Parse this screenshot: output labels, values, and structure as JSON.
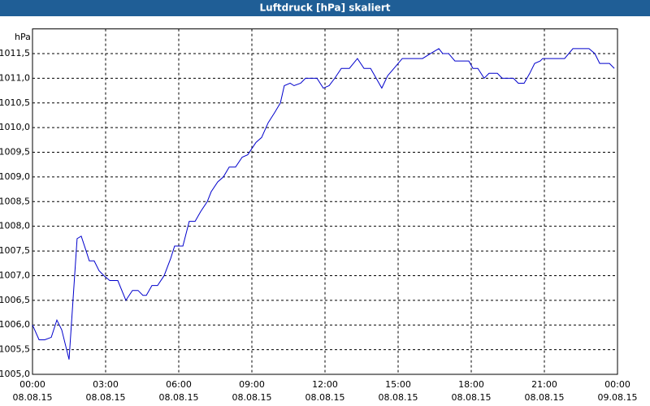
{
  "chart_data": {
    "type": "line",
    "title": "Luftdruck [hPa] skaliert",
    "y_unit": "hPa",
    "xlim": [
      0,
      24
    ],
    "ylim": [
      1005,
      1012
    ],
    "grid": true,
    "xticks": [
      {
        "value": 0,
        "label": "00:00\n08.08.15"
      },
      {
        "value": 3,
        "label": "03:00\n08.08.15"
      },
      {
        "value": 6,
        "label": "06:00\n08.08.15"
      },
      {
        "value": 9,
        "label": "09:00\n08.08.15"
      },
      {
        "value": 12,
        "label": "12:00\n08.08.15"
      },
      {
        "value": 15,
        "label": "15:00\n08.08.15"
      },
      {
        "value": 18,
        "label": "18:00\n08.08.15"
      },
      {
        "value": 21,
        "label": "21:00\n08.08.15"
      },
      {
        "value": 24,
        "label": "00:00\n09.08.15"
      }
    ],
    "yticks": [
      {
        "value": 1005,
        "label": "1005,0"
      },
      {
        "value": 1005.5,
        "label": "1005,5"
      },
      {
        "value": 1006,
        "label": "1006,0"
      },
      {
        "value": 1006.5,
        "label": "1006,5"
      },
      {
        "value": 1007,
        "label": "1007,0"
      },
      {
        "value": 1007.5,
        "label": "1007,5"
      },
      {
        "value": 1008,
        "label": "1008,0"
      },
      {
        "value": 1008.5,
        "label": "1008,5"
      },
      {
        "value": 1009,
        "label": "1009,0"
      },
      {
        "value": 1009.5,
        "label": "1009,5"
      },
      {
        "value": 1010,
        "label": "1010,0"
      },
      {
        "value": 1010.5,
        "label": "1010,5"
      },
      {
        "value": 1011,
        "label": "1011,0"
      },
      {
        "value": 1011.5,
        "label": "1011,5"
      }
    ],
    "x": [
      0,
      0.27,
      0.5,
      0.77,
      1,
      1.2,
      1.5,
      1.83,
      2,
      2.2,
      2.33,
      2.53,
      2.73,
      2.93,
      3.17,
      3.5,
      3.83,
      4.1,
      4.33,
      4.53,
      4.67,
      4.9,
      5.13,
      5.4,
      5.67,
      5.83,
      6.17,
      6.43,
      6.67,
      6.9,
      7.17,
      7.33,
      7.6,
      7.83,
      8.07,
      8.33,
      8.6,
      8.83,
      9.17,
      9.4,
      9.67,
      9.93,
      10.17,
      10.33,
      10.57,
      10.73,
      11,
      11.2,
      11.67,
      11.93,
      12.17,
      12.4,
      12.67,
      13,
      13.33,
      13.6,
      13.87,
      14.1,
      14.33,
      14.57,
      14.83,
      15.17,
      16,
      16.33,
      16.67,
      16.83,
      17.07,
      17.33,
      17.9,
      18.07,
      18.27,
      18.53,
      18.73,
      19.07,
      19.27,
      19.73,
      19.93,
      20.17,
      20.4,
      20.6,
      20.83,
      20.93,
      21.83,
      22.17,
      22.83,
      23.07,
      23.27,
      23.67,
      23.87
    ],
    "series": [
      {
        "color": "#0000cc",
        "values": [
          1006.0,
          1005.7,
          1005.7,
          1005.75,
          1006.1,
          1005.9,
          1005.3,
          1007.75,
          1007.8,
          1007.5,
          1007.3,
          1007.3,
          1007.1,
          1007.0,
          1006.9,
          1006.9,
          1006.5,
          1006.7,
          1006.7,
          1006.6,
          1006.6,
          1006.8,
          1006.8,
          1007.0,
          1007.35,
          1007.6,
          1007.6,
          1008.1,
          1008.1,
          1008.3,
          1008.5,
          1008.7,
          1008.9,
          1009.0,
          1009.2,
          1009.2,
          1009.4,
          1009.45,
          1009.7,
          1009.8,
          1010.1,
          1010.3,
          1010.5,
          1010.85,
          1010.9,
          1010.85,
          1010.9,
          1011.0,
          1011.0,
          1010.8,
          1010.85,
          1011.0,
          1011.2,
          1011.2,
          1011.4,
          1011.2,
          1011.2,
          1011.0,
          1010.8,
          1011.05,
          1011.2,
          1011.4,
          1011.4,
          1011.5,
          1011.6,
          1011.5,
          1011.5,
          1011.35,
          1011.35,
          1011.2,
          1011.2,
          1011.0,
          1011.1,
          1011.1,
          1011.0,
          1011.0,
          1010.9,
          1010.9,
          1011.1,
          1011.3,
          1011.35,
          1011.4,
          1011.4,
          1011.6,
          1011.6,
          1011.5,
          1011.3,
          1011.3,
          1011.2
        ]
      }
    ]
  }
}
